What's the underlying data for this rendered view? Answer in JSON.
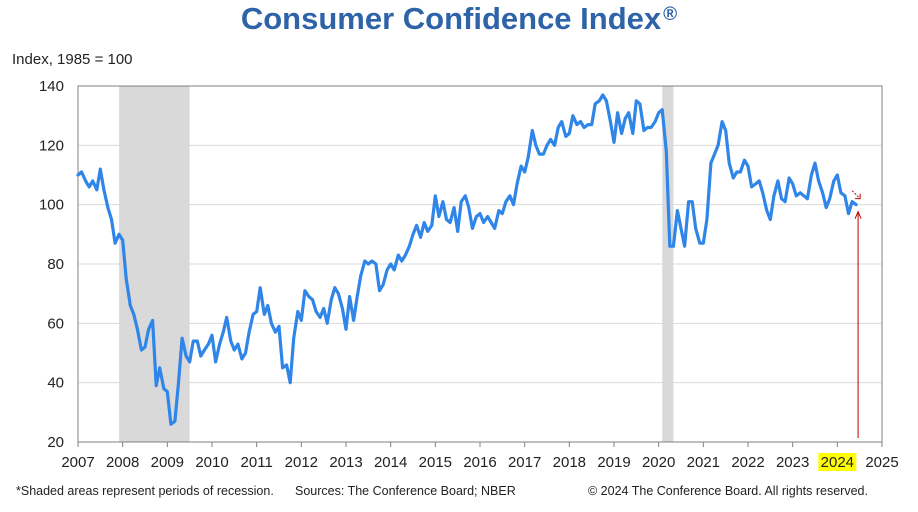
{
  "colors": {
    "title": "#2E63A8",
    "line": "#2F86E8",
    "recession": "#D9D9D9",
    "highlight": "#FFFF00",
    "annotation": "#C00000",
    "grid": "#D9D9D9",
    "axis": "#808080"
  },
  "header": {
    "title": "Consumer Confidence Index",
    "registered": "®"
  },
  "footer": {
    "note": "*Shaded areas represent periods of recession.",
    "sources": "Sources: The Conference Board;  NBER",
    "copyright": "© 2024 The Conference Board. All rights reserved."
  },
  "chart_data": {
    "type": "line",
    "title": "Consumer Confidence Index",
    "ylabel": "Index, 1985 = 100",
    "xlabel": "",
    "xlim": [
      2007,
      2025
    ],
    "ylim": [
      20,
      140
    ],
    "yticks": [
      20,
      40,
      60,
      80,
      100,
      120,
      140
    ],
    "xticks": [
      "2007",
      "2008",
      "2009",
      "2010",
      "2011",
      "2012",
      "2013",
      "2014",
      "2015",
      "2016",
      "2017",
      "2018",
      "2019",
      "2020",
      "2021",
      "2022",
      "2023",
      "2024",
      "2025"
    ],
    "highlighted_tick": "2024",
    "grid": true,
    "recessions": [
      {
        "start": 2007.92,
        "end": 2009.5
      },
      {
        "start": 2020.08,
        "end": 2020.33
      }
    ],
    "series": [
      {
        "name": "Consumer Confidence Index",
        "x": [
          2007.0,
          2007.08,
          2007.17,
          2007.25,
          2007.33,
          2007.42,
          2007.5,
          2007.58,
          2007.67,
          2007.75,
          2007.83,
          2007.92,
          2008.0,
          2008.08,
          2008.17,
          2008.25,
          2008.33,
          2008.42,
          2008.5,
          2008.58,
          2008.67,
          2008.75,
          2008.83,
          2008.92,
          2009.0,
          2009.08,
          2009.17,
          2009.25,
          2009.33,
          2009.42,
          2009.5,
          2009.58,
          2009.67,
          2009.75,
          2009.83,
          2009.92,
          2010.0,
          2010.08,
          2010.17,
          2010.25,
          2010.33,
          2010.42,
          2010.5,
          2010.58,
          2010.67,
          2010.75,
          2010.83,
          2010.92,
          2011.0,
          2011.08,
          2011.17,
          2011.25,
          2011.33,
          2011.42,
          2011.5,
          2011.58,
          2011.67,
          2011.75,
          2011.83,
          2011.92,
          2012.0,
          2012.08,
          2012.17,
          2012.25,
          2012.33,
          2012.42,
          2012.5,
          2012.58,
          2012.67,
          2012.75,
          2012.83,
          2012.92,
          2013.0,
          2013.08,
          2013.17,
          2013.25,
          2013.33,
          2013.42,
          2013.5,
          2013.58,
          2013.67,
          2013.75,
          2013.83,
          2013.92,
          2014.0,
          2014.08,
          2014.17,
          2014.25,
          2014.33,
          2014.42,
          2014.5,
          2014.58,
          2014.67,
          2014.75,
          2014.83,
          2014.92,
          2015.0,
          2015.08,
          2015.17,
          2015.25,
          2015.33,
          2015.42,
          2015.5,
          2015.58,
          2015.67,
          2015.75,
          2015.83,
          2015.92,
          2016.0,
          2016.08,
          2016.17,
          2016.25,
          2016.33,
          2016.42,
          2016.5,
          2016.58,
          2016.67,
          2016.75,
          2016.83,
          2016.92,
          2017.0,
          2017.08,
          2017.17,
          2017.25,
          2017.33,
          2017.42,
          2017.5,
          2017.58,
          2017.67,
          2017.75,
          2017.83,
          2017.92,
          2018.0,
          2018.08,
          2018.17,
          2018.25,
          2018.33,
          2018.42,
          2018.5,
          2018.58,
          2018.67,
          2018.75,
          2018.83,
          2018.92,
          2019.0,
          2019.08,
          2019.17,
          2019.25,
          2019.33,
          2019.42,
          2019.5,
          2019.58,
          2019.67,
          2019.75,
          2019.83,
          2019.92,
          2020.0,
          2020.08,
          2020.17,
          2020.25,
          2020.33,
          2020.42,
          2020.5,
          2020.58,
          2020.67,
          2020.75,
          2020.83,
          2020.92,
          2021.0,
          2021.08,
          2021.17,
          2021.25,
          2021.33,
          2021.42,
          2021.5,
          2021.58,
          2021.67,
          2021.75,
          2021.83,
          2021.92,
          2022.0,
          2022.08,
          2022.17,
          2022.25,
          2022.33,
          2022.42,
          2022.5,
          2022.58,
          2022.67,
          2022.75,
          2022.83,
          2022.92,
          2023.0,
          2023.08,
          2023.17,
          2023.25,
          2023.33,
          2023.42,
          2023.5,
          2023.58,
          2023.67,
          2023.75,
          2023.83,
          2023.92,
          2024.0,
          2024.08,
          2024.17,
          2024.25,
          2024.33,
          2024.42
        ],
        "values": [
          110,
          111,
          108,
          106,
          108,
          105,
          112,
          105,
          99,
          95,
          87,
          90,
          88,
          75,
          66,
          63,
          58,
          51,
          52,
          58,
          61,
          39,
          45,
          38,
          37,
          26,
          27,
          40,
          55,
          49,
          47,
          54,
          54,
          49,
          51,
          53,
          56,
          47,
          53,
          57,
          62,
          54,
          51,
          53,
          48,
          50,
          57,
          63,
          64,
          72,
          63,
          66,
          60,
          57,
          59,
          45,
          46,
          40,
          55,
          64,
          61,
          71,
          69,
          68,
          64,
          62,
          65,
          60,
          68,
          72,
          70,
          65,
          58,
          69,
          61,
          69,
          76,
          81,
          80,
          81,
          80,
          71,
          73,
          78,
          80,
          78,
          83,
          81,
          83,
          86,
          90,
          93,
          89,
          94,
          91,
          93,
          103,
          96,
          101,
          95,
          94,
          99,
          91,
          101,
          103,
          99,
          92,
          96,
          97,
          94,
          96,
          94,
          92,
          98,
          97,
          101,
          103,
          100,
          107,
          113,
          111,
          116,
          125,
          120,
          117,
          117,
          120,
          122,
          120,
          126,
          128,
          123,
          124,
          130,
          127,
          128,
          126,
          127,
          127,
          134,
          135,
          137,
          135,
          128,
          121,
          131,
          124,
          129,
          131,
          124,
          135,
          134,
          125,
          126,
          126,
          128,
          131,
          132,
          118,
          86,
          86,
          98,
          92,
          86,
          101,
          101,
          92,
          87,
          87,
          95,
          114,
          117,
          120,
          128,
          125,
          114,
          109,
          111,
          111,
          115,
          113,
          106,
          107,
          108,
          104,
          98,
          95,
          103,
          108,
          102,
          101,
          109,
          107,
          103,
          104,
          103,
          102,
          110,
          114,
          108,
          104,
          99,
          102,
          108,
          110,
          104,
          103,
          97,
          101,
          100
        ]
      }
    ],
    "annotations": [
      "red arrow marking latest reading (mid-2024)"
    ]
  }
}
